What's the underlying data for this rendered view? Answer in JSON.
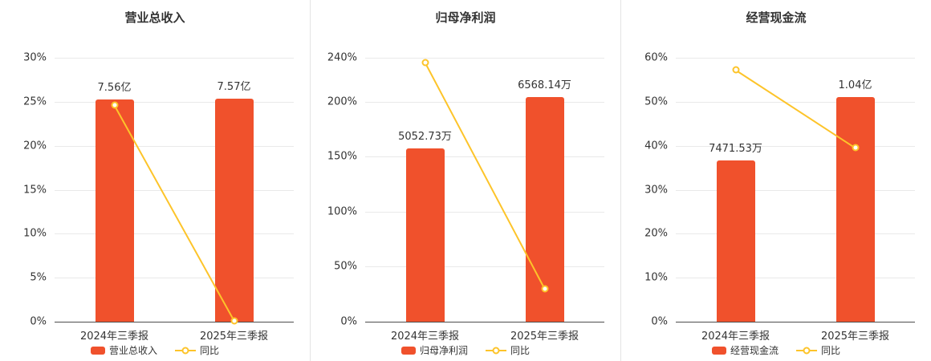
{
  "colors": {
    "bar": "#f0512c",
    "line": "#fdc42a",
    "marker_fill": "#ffffff",
    "axis_line": "#4d4d4d",
    "grid_line": "#e9e9e9",
    "text": "#333333",
    "divider": "#e4e4e4",
    "background": "#ffffff"
  },
  "chart_data": [
    {
      "type": "bar",
      "title": "营业总收入",
      "categories": [
        "2024年三季报",
        "2025年三季报"
      ],
      "ylim": [
        0,
        30
      ],
      "ytick_values": [
        0,
        5,
        10,
        15,
        20,
        25,
        30
      ],
      "ytick_labels": [
        "0%",
        "5%",
        "10%",
        "15%",
        "20%",
        "25%",
        "30%"
      ],
      "grid": true,
      "legend_position": "bottom",
      "series": [
        {
          "name": "营业总收入",
          "kind": "bar",
          "plotted_pct": [
            25.3,
            25.35
          ],
          "data_labels": [
            "7.56亿",
            "7.57亿"
          ]
        },
        {
          "name": "同比",
          "kind": "line",
          "plotted_pct": [
            24.6,
            0.13
          ]
        }
      ]
    },
    {
      "type": "bar",
      "title": "归母净利润",
      "categories": [
        "2024年三季报",
        "2025年三季报"
      ],
      "ylim": [
        0,
        240
      ],
      "ytick_values": [
        0,
        50,
        100,
        150,
        200,
        240
      ],
      "ytick_labels": [
        "0%",
        "50%",
        "100%",
        "150%",
        "200%",
        "240%"
      ],
      "grid": true,
      "legend_position": "bottom",
      "series": [
        {
          "name": "归母净利润",
          "kind": "bar",
          "plotted_pct": [
            157.5,
            204
          ],
          "data_labels": [
            "5052.73万",
            "6568.14万"
          ]
        },
        {
          "name": "同比",
          "kind": "line",
          "plotted_pct": [
            235.8,
            30
          ]
        }
      ]
    },
    {
      "type": "bar",
      "title": "经营现金流",
      "categories": [
        "2024年三季报",
        "2025年三季报"
      ],
      "ylim": [
        0,
        60
      ],
      "ytick_values": [
        0,
        10,
        20,
        30,
        40,
        50,
        60
      ],
      "ytick_labels": [
        "0%",
        "10%",
        "20%",
        "30%",
        "40%",
        "50%",
        "60%"
      ],
      "grid": true,
      "legend_position": "bottom",
      "series": [
        {
          "name": "经营现金流",
          "kind": "bar",
          "plotted_pct": [
            36.6,
            51
          ],
          "data_labels": [
            "7471.53万",
            "1.04亿"
          ]
        },
        {
          "name": "同比",
          "kind": "line",
          "plotted_pct": [
            57.2,
            39.5
          ]
        }
      ]
    }
  ]
}
